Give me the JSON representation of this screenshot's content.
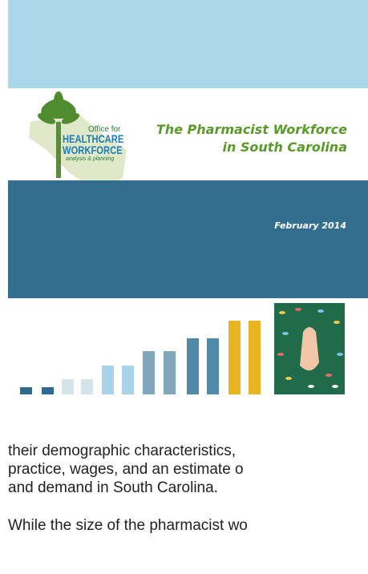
{
  "header": {
    "logo": {
      "office": "Office for",
      "healthcare": "HEALTHCARE",
      "workforce": "WORKFORCE",
      "tagline": "analysis & planning"
    },
    "title_line1": "The Pharmacist Workforce",
    "title_line2": "in South Carolina",
    "date": "February 2014"
  },
  "body": {
    "lines": [
      "their demographic characteristics,",
      "practice, wages, and an estimate o",
      "and demand in South Carolina.",
      "While the size of the pharmacist wo"
    ]
  }
}
